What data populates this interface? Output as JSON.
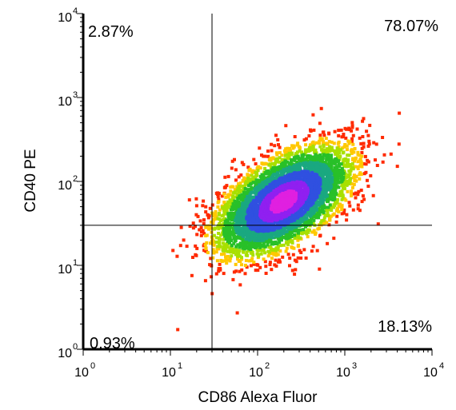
{
  "chart_data": {
    "type": "scatter",
    "subtype": "flow-cytometry-density-plot",
    "xlabel": "CD86 Alexa Fluor",
    "ylabel": "CD40 PE",
    "x_scale": "log",
    "y_scale": "log",
    "xlim": [
      1,
      10000
    ],
    "ylim": [
      1,
      10000
    ],
    "x_ticks": [
      {
        "base": "10",
        "exp": "0"
      },
      {
        "base": "10",
        "exp": "1"
      },
      {
        "base": "10",
        "exp": "2"
      },
      {
        "base": "10",
        "exp": "3"
      },
      {
        "base": "10",
        "exp": "4"
      }
    ],
    "y_ticks": [
      {
        "base": "10",
        "exp": "0"
      },
      {
        "base": "10",
        "exp": "1"
      },
      {
        "base": "10",
        "exp": "2"
      },
      {
        "base": "10",
        "exp": "3"
      },
      {
        "base": "10",
        "exp": "4"
      }
    ],
    "gate": {
      "x": 30,
      "y": 30
    },
    "quadrants": {
      "upper_left": "2.87%",
      "upper_right": "78.07%",
      "lower_left": "0.93%",
      "lower_right": "18.13%"
    },
    "density_colors": [
      "#ff2a00",
      "#ffc800",
      "#a8e000",
      "#28c028",
      "#1aa880",
      "#3050e0",
      "#9020f0",
      "#e020e0"
    ]
  }
}
